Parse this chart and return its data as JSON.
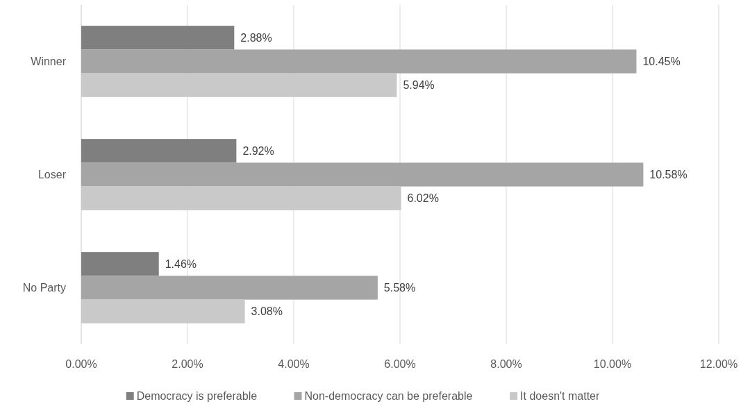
{
  "chart_data": {
    "type": "bar",
    "orientation": "horizontal",
    "categories": [
      "Winner",
      "Loser",
      "No Party"
    ],
    "series": [
      {
        "name": "Democracy is preferable",
        "color": "#7f7f7f",
        "values": [
          2.88,
          2.92,
          1.46
        ],
        "value_labels": [
          "2.88%",
          "2.92%",
          "1.46%"
        ]
      },
      {
        "name": "Non-democracy can be preferable",
        "color": "#a5a5a5",
        "values": [
          10.45,
          10.58,
          5.58
        ],
        "value_labels": [
          "10.45%",
          "10.58%",
          "5.58%"
        ]
      },
      {
        "name": "It doesn't matter",
        "color": "#c9c9c9",
        "values": [
          5.94,
          6.02,
          3.08
        ],
        "value_labels": [
          "5.94%",
          "6.02%",
          "3.08%"
        ]
      }
    ],
    "xlim": [
      0,
      12
    ],
    "xticks": [
      {
        "value": 0,
        "label": "0.00%"
      },
      {
        "value": 2,
        "label": "2.00%"
      },
      {
        "value": 4,
        "label": "4.00%"
      },
      {
        "value": 6,
        "label": "6.00%"
      },
      {
        "value": 8,
        "label": "8.00%"
      },
      {
        "value": 10,
        "label": "10.00%"
      },
      {
        "value": 12,
        "label": "12.00%"
      }
    ],
    "grid": "x",
    "legend": "bottom"
  }
}
